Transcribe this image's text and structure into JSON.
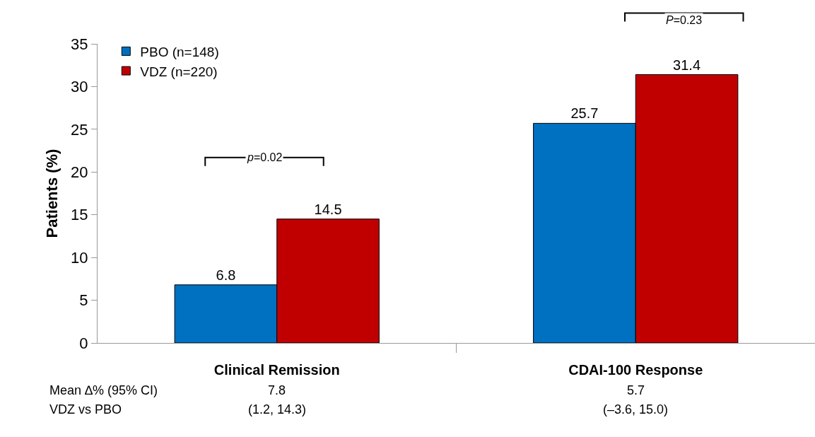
{
  "chart_data": {
    "type": "bar",
    "ylabel": "Patients (%)",
    "categories": [
      "Clinical Remission",
      "CDAI-100 Response"
    ],
    "series": [
      {
        "name": "PBO (n=148)",
        "color": "#0070c0",
        "values": [
          6.8,
          25.7
        ]
      },
      {
        "name": "VDZ (n=220)",
        "color": "#c00000",
        "values": [
          14.5,
          31.4
        ]
      }
    ],
    "ylim": [
      0,
      35
    ],
    "yticks": [
      0,
      5,
      10,
      15,
      20,
      25,
      30,
      35
    ],
    "grid": false,
    "legend": "top left",
    "data_labels": true,
    "annotations": [
      "p=0.02",
      "P=0.23",
      "Mean ∆% (95% CI)",
      "VDZ vs PBO",
      "7.8",
      "(1.2, 14.3)",
      "5.7",
      "(–3.6, 15.0)"
    ]
  }
}
